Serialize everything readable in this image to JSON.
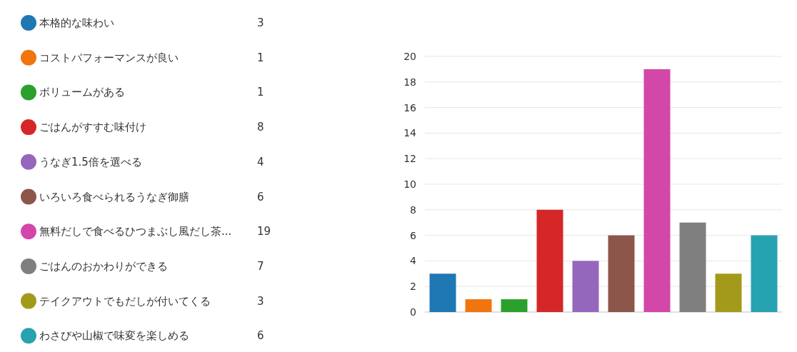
{
  "chart_data": {
    "type": "bar",
    "categories": [
      null,
      null,
      null,
      null,
      null,
      null,
      null,
      null,
      null,
      null
    ],
    "series": [
      {
        "name": "本格的な味わい",
        "color": "#1f77b4",
        "values": [
          3,
          null,
          null,
          null,
          null,
          null,
          null,
          null,
          null,
          null
        ]
      },
      {
        "name": "コストパフォーマンスが良い",
        "color": "#f0750f",
        "values": [
          null,
          1,
          null,
          null,
          null,
          null,
          null,
          null,
          null,
          null
        ]
      },
      {
        "name": "ボリュームがある",
        "color": "#2ca02c",
        "values": [
          null,
          null,
          1,
          null,
          null,
          null,
          null,
          null,
          null,
          null
        ]
      },
      {
        "name": "ごはんがすすむ味付け",
        "color": "#d62728",
        "values": [
          null,
          null,
          null,
          8,
          null,
          null,
          null,
          null,
          null,
          null
        ]
      },
      {
        "name": "うなぎ1.5倍を選べる",
        "color": "#9467bd",
        "values": [
          null,
          null,
          null,
          null,
          4,
          null,
          null,
          null,
          null,
          null
        ]
      },
      {
        "name": "いろいろ食べられるうなぎ御膳",
        "color": "#8c564b",
        "values": [
          null,
          null,
          null,
          null,
          null,
          6,
          null,
          null,
          null,
          null
        ]
      },
      {
        "name": "無料だしで食べるひつまぶし風だし茶...",
        "color": "#d347a9",
        "values": [
          null,
          null,
          null,
          null,
          null,
          null,
          19,
          null,
          null,
          null
        ]
      },
      {
        "name": "ごはんのおかわりができる",
        "color": "#7f7f7f",
        "values": [
          null,
          null,
          null,
          null,
          null,
          null,
          null,
          7,
          null,
          null
        ]
      },
      {
        "name": "テイクアウトでもだしが付いてくる",
        "color": "#a39a1c",
        "values": [
          null,
          null,
          null,
          null,
          null,
          null,
          null,
          null,
          3,
          null
        ]
      },
      {
        "name": "わさびや山椒で味変を楽しめる",
        "color": "#27a2b0",
        "values": [
          null,
          null,
          null,
          null,
          null,
          null,
          null,
          null,
          null,
          6
        ]
      }
    ],
    "annotations": [
      "3",
      "1",
      "1",
      "8",
      "4",
      "6",
      "19",
      "7",
      "3",
      "6"
    ],
    "stacked": true,
    "ylim": [
      0,
      20
    ],
    "yticks": [
      0,
      2,
      4,
      6,
      8,
      10,
      12,
      14,
      16,
      18,
      20
    ],
    "grid": "y",
    "legend": "left",
    "tick_labels": "y"
  }
}
